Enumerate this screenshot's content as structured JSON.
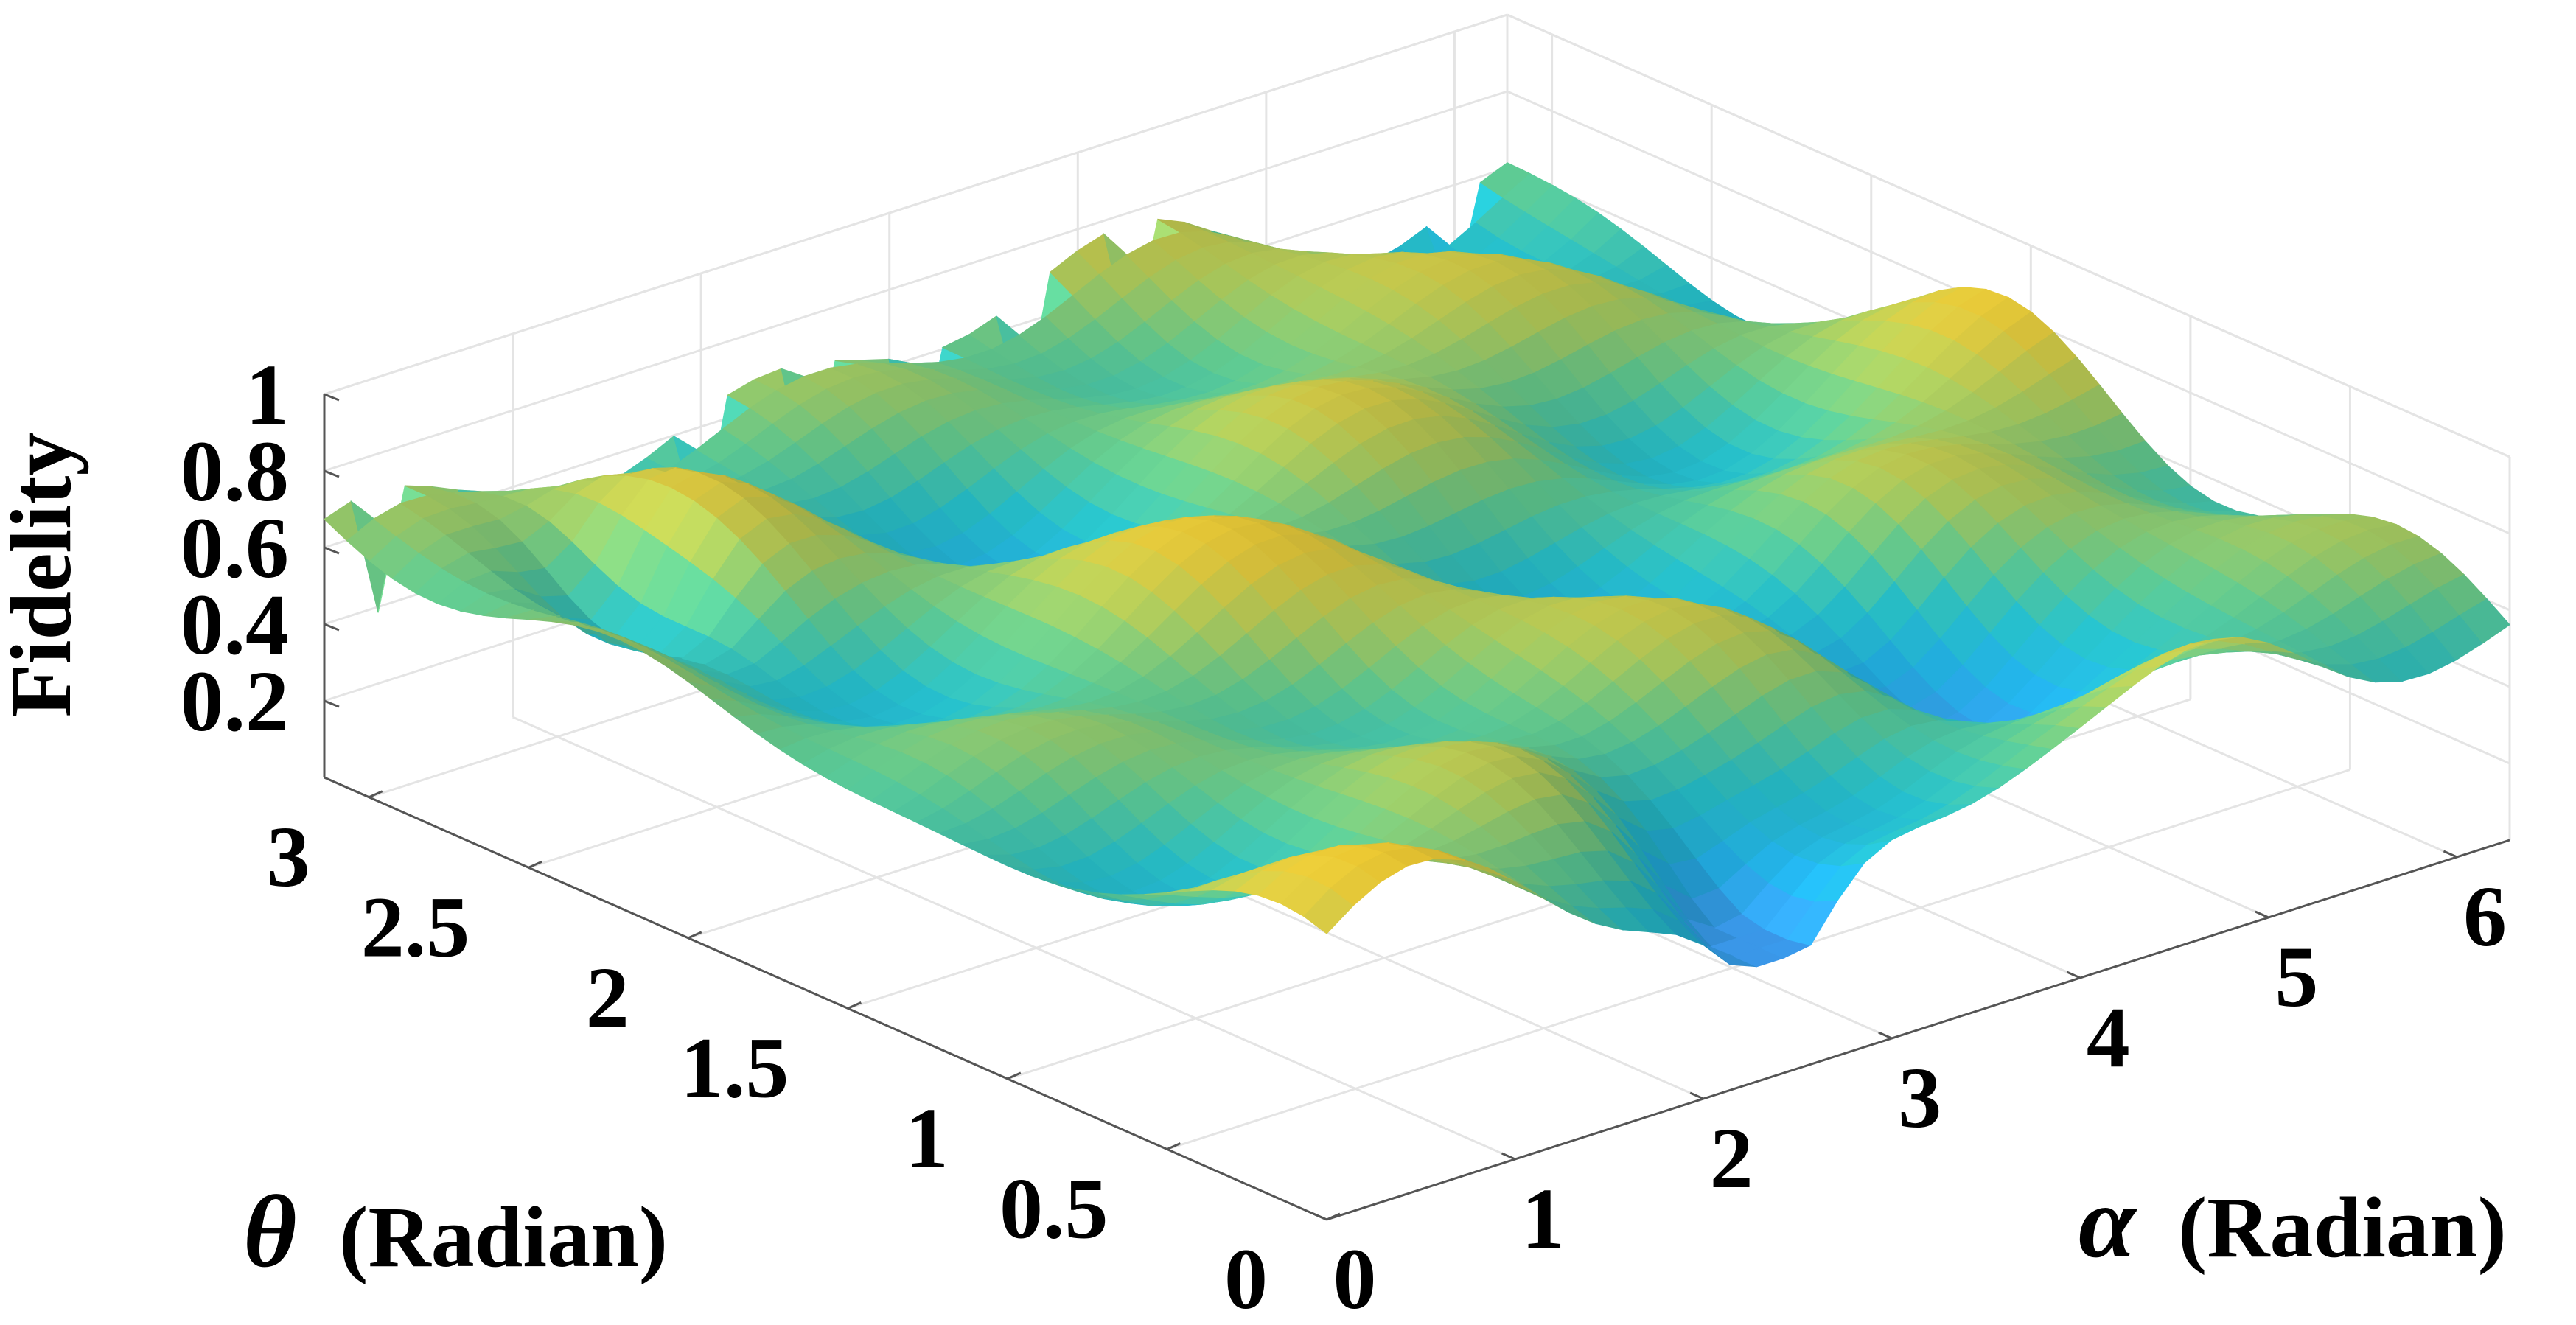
{
  "chart_data": {
    "type": "surface",
    "title": "",
    "xlabel_symbol": "α",
    "xlabel_unit": "(Radian)",
    "ylabel_symbol": "θ",
    "ylabel_unit": "(Radian)",
    "zlabel": "Fidelity",
    "x_ticks": [
      "0",
      "1",
      "2",
      "3",
      "4",
      "5",
      "6"
    ],
    "y_ticks": [
      "0",
      "0.5",
      "1",
      "1.5",
      "2",
      "2.5",
      "3"
    ],
    "z_ticks": [
      "0.2",
      "0.4",
      "0.6",
      "0.8",
      "1"
    ],
    "xlim": [
      0,
      6.28
    ],
    "ylim": [
      0,
      3.14
    ],
    "zlim": [
      0,
      1
    ],
    "colormap": "parula",
    "colors": [
      "#3a97e8",
      "#21a9dd",
      "#25b8c2",
      "#5cc28b",
      "#a4c35a",
      "#d6bf3a",
      "#f2c72b"
    ],
    "grid": true,
    "value_range": [
      0.3,
      0.9
    ]
  }
}
